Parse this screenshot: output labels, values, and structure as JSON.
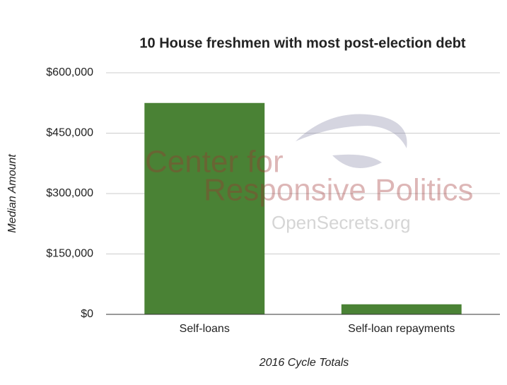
{
  "chart_data": {
    "type": "bar",
    "title": "10 House freshmen with most post-election debt",
    "categories": [
      "Self-loans",
      "Self-loan repayments"
    ],
    "values": [
      525000,
      25000
    ],
    "color": "#4a8235",
    "x_label": "2016 Cycle Totals",
    "y_label": "Median Amount",
    "ylim": [
      0,
      600000
    ],
    "yticks": [
      {
        "value": 0,
        "label": "$0"
      },
      {
        "value": 150000,
        "label": "$150,000"
      },
      {
        "value": 300000,
        "label": "$300,000"
      },
      {
        "value": 450000,
        "label": "$450,000"
      },
      {
        "value": 600000,
        "label": "$600,000"
      }
    ],
    "grid": true,
    "watermark": [
      "Center for",
      "Responsive Politics",
      "OpenSecrets.org"
    ]
  }
}
